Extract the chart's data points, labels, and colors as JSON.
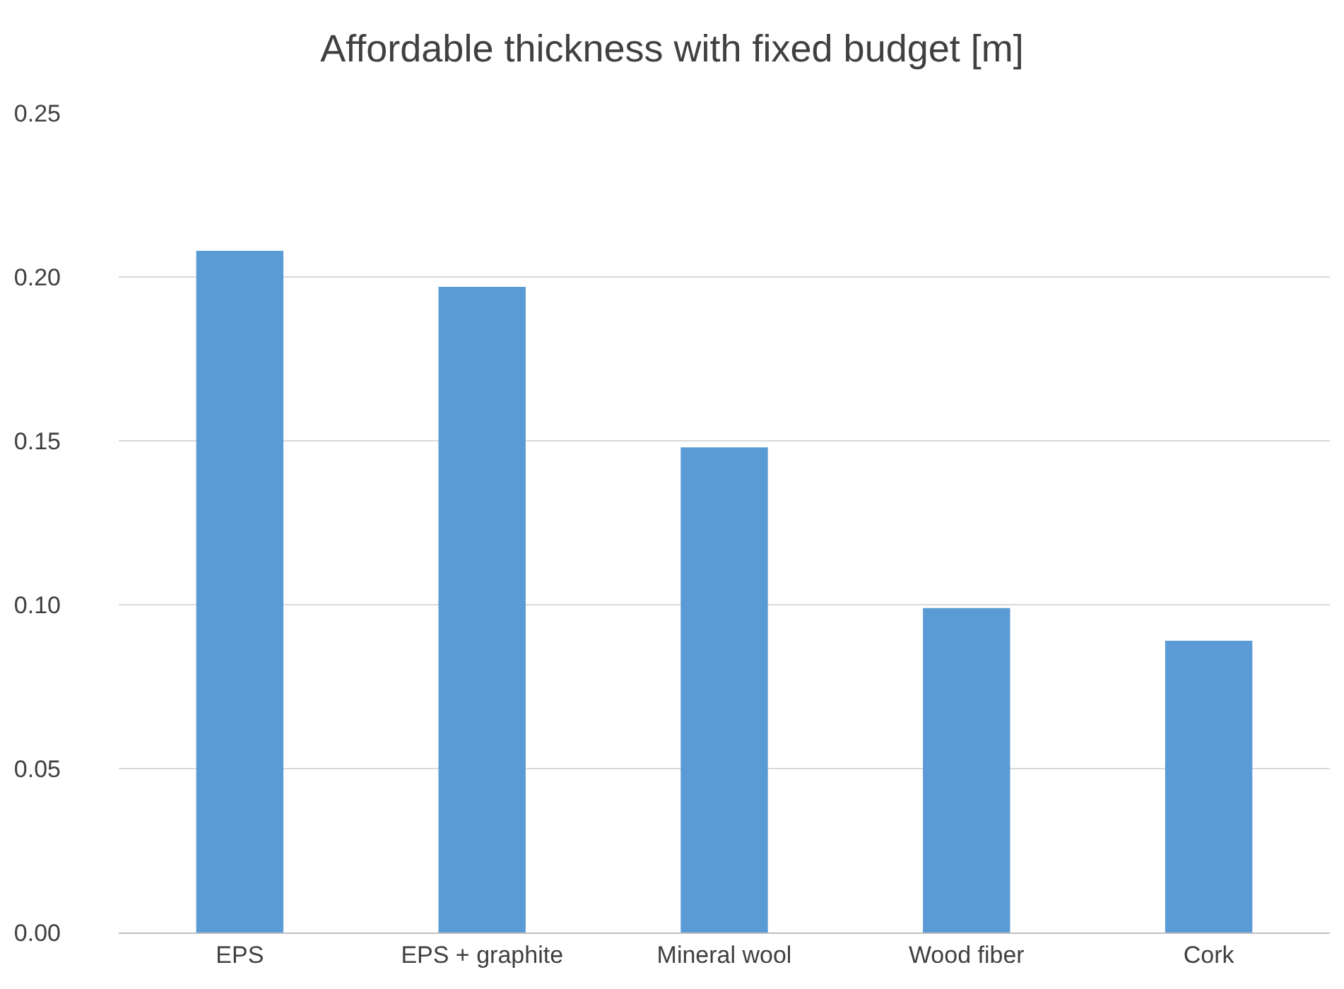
{
  "chart_data": {
    "type": "bar",
    "title": "Affordable thickness with fixed budget [m]",
    "categories": [
      "EPS",
      "EPS + graphite",
      "Mineral wool",
      "Wood fiber",
      "Cork"
    ],
    "values": [
      0.208,
      0.197,
      0.148,
      0.099,
      0.089
    ],
    "color": "#5b9bd5",
    "ylim": [
      0,
      0.25
    ],
    "yticks": [
      {
        "value": 0,
        "label": "0.00"
      },
      {
        "value": 0.05,
        "label": "0.05"
      },
      {
        "value": 0.1,
        "label": "0.10"
      },
      {
        "value": 0.15,
        "label": "0.15"
      },
      {
        "value": 0.2,
        "label": "0.20"
      },
      {
        "value": 0.25,
        "label": "0.25"
      }
    ],
    "grid": "y"
  }
}
